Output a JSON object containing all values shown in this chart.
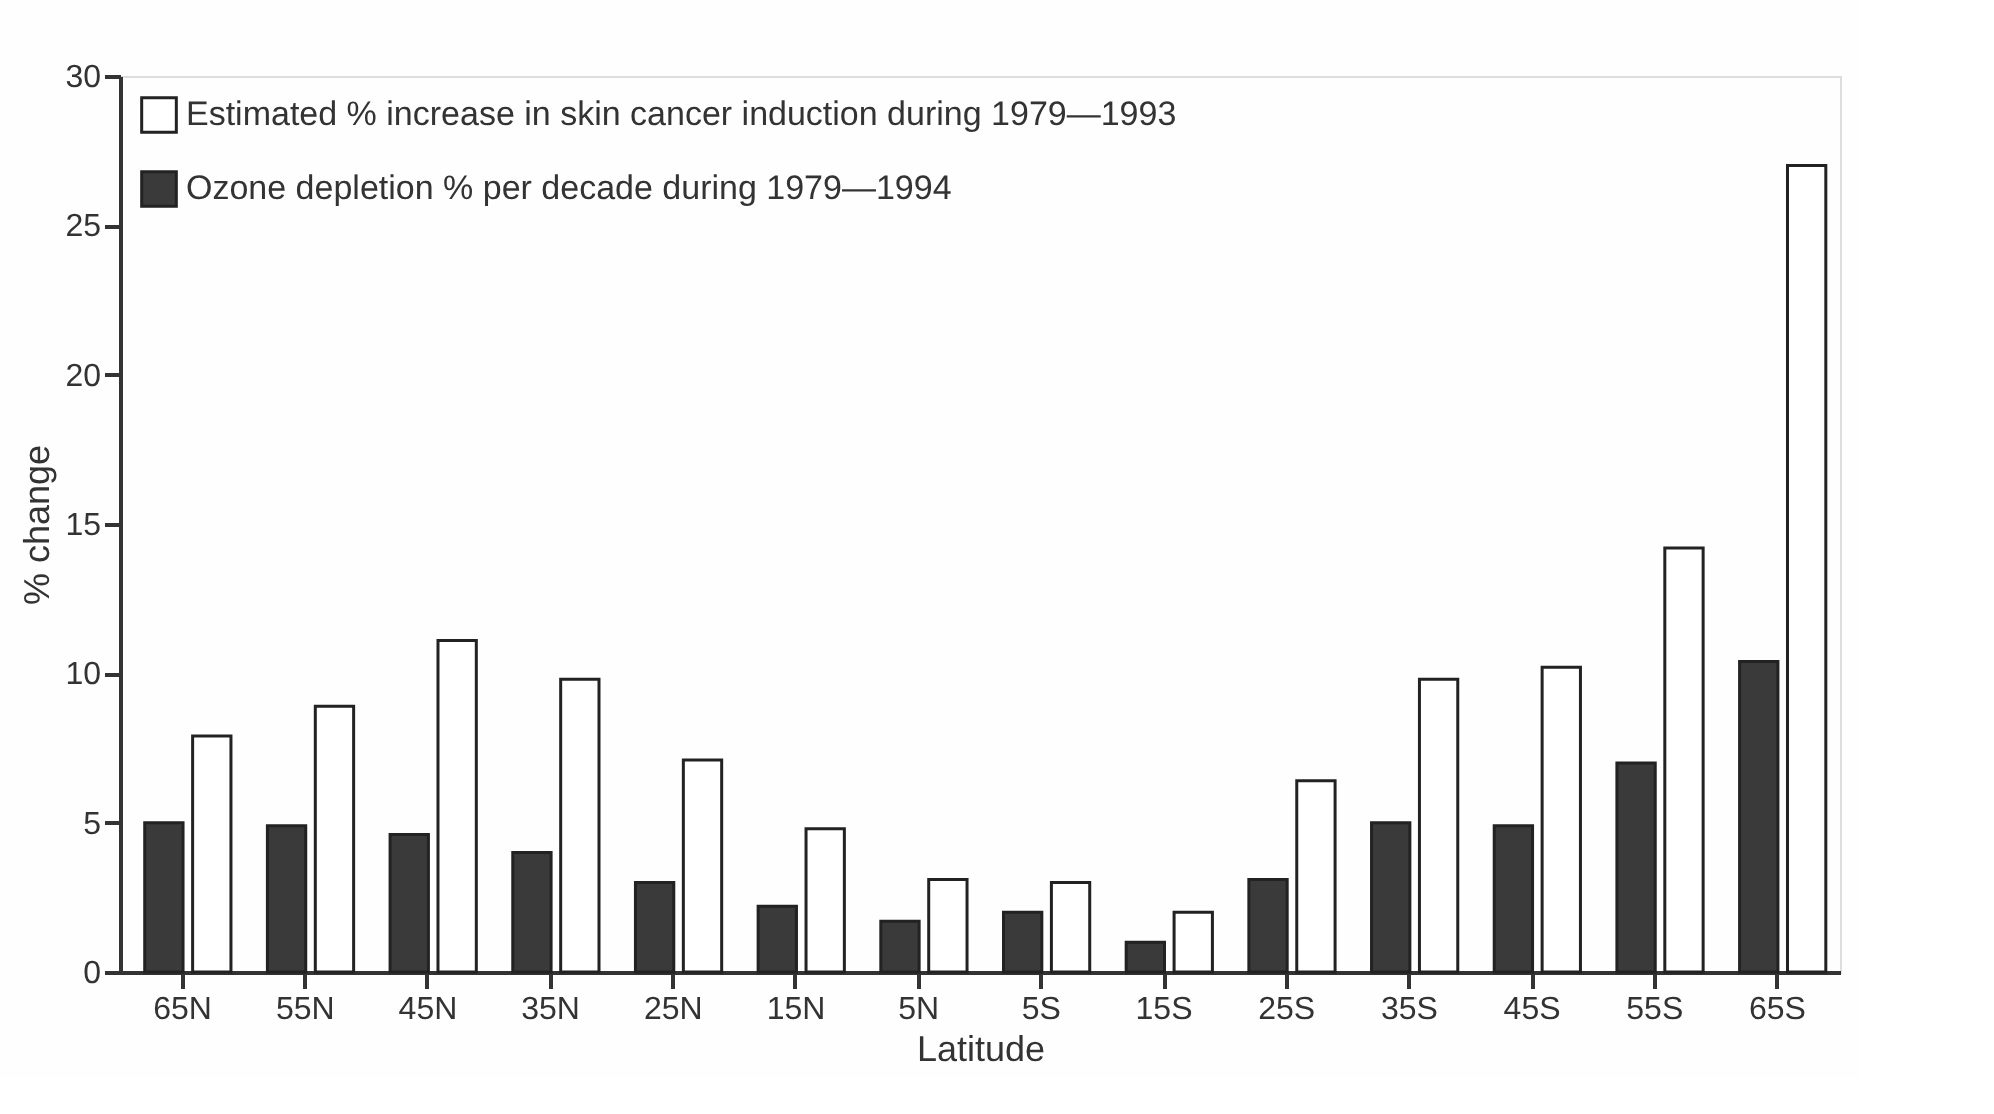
{
  "chart_data": {
    "type": "bar",
    "xlabel": "Latitude",
    "ylabel": "% change",
    "categories": [
      "65N",
      "55N",
      "45N",
      "35N",
      "25N",
      "15N",
      "5N",
      "5S",
      "15S",
      "25S",
      "35S",
      "45S",
      "55S",
      "65S"
    ],
    "series": [
      {
        "name": "Ozone depletion % per decade during 1979—1994",
        "color": "#3a3a3a",
        "values": [
          5.0,
          4.9,
          4.6,
          4.0,
          3.0,
          2.2,
          1.7,
          2.0,
          1.0,
          3.1,
          5.0,
          4.9,
          7.0,
          10.4
        ]
      },
      {
        "name": "Estimated % increase in skin cancer induction during 1979—1993",
        "color": "#ffffff",
        "values": [
          7.9,
          8.9,
          11.1,
          9.8,
          7.1,
          4.8,
          3.1,
          3.0,
          2.0,
          6.4,
          9.8,
          10.2,
          14.2,
          27.0
        ]
      }
    ],
    "ylim": [
      0,
      30
    ],
    "yticks": [
      0,
      5,
      10,
      15,
      20,
      25,
      30
    ],
    "grid": false,
    "legend": "top left"
  }
}
